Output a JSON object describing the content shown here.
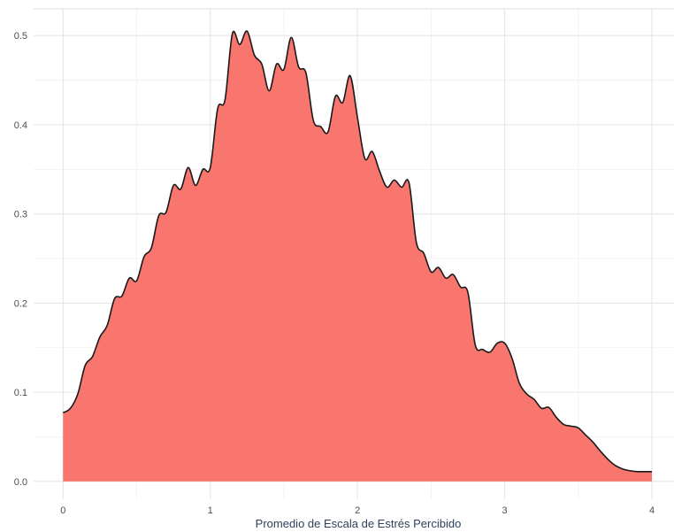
{
  "chart_data": {
    "type": "area",
    "title": "",
    "xlabel": "Promedio de Escala de Estrés Percibido",
    "ylabel": "",
    "xlim": [
      -0.2,
      4.15
    ],
    "ylim": [
      -0.02,
      0.53
    ],
    "x_ticks": [
      0,
      1,
      2,
      3,
      4
    ],
    "x_tick_labels": [
      "0",
      "1",
      "2",
      "3",
      "4"
    ],
    "y_ticks": [
      0.0,
      0.1,
      0.2,
      0.3,
      0.4,
      0.5
    ],
    "y_tick_labels": [
      "0.0",
      "0.1",
      "0.2",
      "0.3",
      "0.4",
      "0.5"
    ],
    "grid": true,
    "fill_color": "#F8766D",
    "line_color": "#1a1a1a",
    "series": [
      {
        "x": [
          0.0,
          0.05,
          0.1,
          0.15,
          0.2,
          0.25,
          0.3,
          0.35,
          0.4,
          0.45,
          0.5,
          0.55,
          0.6,
          0.65,
          0.7,
          0.75,
          0.8,
          0.85,
          0.9,
          0.95,
          1.0,
          1.05,
          1.1,
          1.15,
          1.2,
          1.25,
          1.3,
          1.35,
          1.4,
          1.45,
          1.5,
          1.55,
          1.6,
          1.65,
          1.7,
          1.75,
          1.8,
          1.85,
          1.9,
          1.95,
          2.0,
          2.05,
          2.1,
          2.15,
          2.2,
          2.25,
          2.3,
          2.35,
          2.4,
          2.45,
          2.5,
          2.55,
          2.6,
          2.65,
          2.7,
          2.75,
          2.8,
          2.85,
          2.9,
          2.95,
          3.0,
          3.05,
          3.1,
          3.15,
          3.2,
          3.25,
          3.3,
          3.35,
          3.4,
          3.45,
          3.5,
          3.55,
          3.6,
          3.65,
          3.7,
          3.75,
          3.8,
          3.85,
          3.9,
          3.95,
          4.0
        ],
        "y": [
          0.077,
          0.082,
          0.098,
          0.13,
          0.14,
          0.162,
          0.175,
          0.205,
          0.208,
          0.228,
          0.225,
          0.252,
          0.262,
          0.298,
          0.302,
          0.332,
          0.328,
          0.352,
          0.332,
          0.35,
          0.352,
          0.418,
          0.428,
          0.502,
          0.49,
          0.505,
          0.478,
          0.468,
          0.438,
          0.468,
          0.462,
          0.498,
          0.465,
          0.458,
          0.405,
          0.398,
          0.392,
          0.432,
          0.425,
          0.455,
          0.408,
          0.362,
          0.37,
          0.348,
          0.33,
          0.338,
          0.33,
          0.335,
          0.268,
          0.256,
          0.235,
          0.24,
          0.228,
          0.232,
          0.218,
          0.212,
          0.153,
          0.148,
          0.145,
          0.155,
          0.155,
          0.138,
          0.11,
          0.098,
          0.092,
          0.082,
          0.083,
          0.072,
          0.064,
          0.062,
          0.06,
          0.052,
          0.044,
          0.034,
          0.025,
          0.018,
          0.014,
          0.012,
          0.011,
          0.011,
          0.011
        ]
      }
    ]
  }
}
